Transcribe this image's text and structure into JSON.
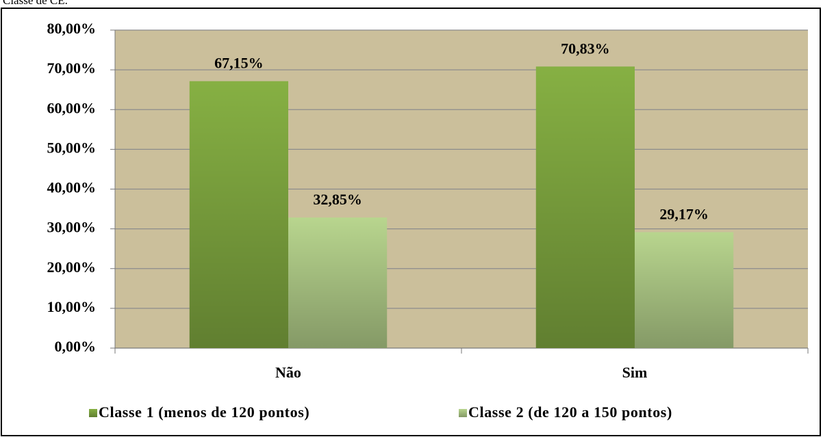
{
  "caption": "Classe de CE.",
  "chart_data": {
    "type": "bar",
    "categories": [
      "Não",
      "Sim"
    ],
    "series": [
      {
        "name": "Classe 1 (menos de 120 pontos)",
        "color": "#86b043",
        "values": [
          67.15,
          70.83
        ],
        "value_labels": [
          "67,15%",
          "70,83%"
        ]
      },
      {
        "name": "Classe 2 (de 120 a 150 pontos)",
        "color": "#b8d58e",
        "values": [
          32.85,
          29.17
        ],
        "value_labels": [
          "32,85%",
          "29,17%"
        ]
      }
    ],
    "ylim": [
      0,
      80
    ],
    "yticks": [
      {
        "value": 0,
        "label": "0,00%"
      },
      {
        "value": 10,
        "label": "10,00%"
      },
      {
        "value": 20,
        "label": "20,00%"
      },
      {
        "value": 30,
        "label": "30,00%"
      },
      {
        "value": 40,
        "label": "40,00%"
      },
      {
        "value": 50,
        "label": "50,00%"
      },
      {
        "value": 60,
        "label": "60,00%"
      },
      {
        "value": 70,
        "label": "70,00%"
      },
      {
        "value": 80,
        "label": "80,00%"
      }
    ],
    "grid": true,
    "legend": "bottom"
  }
}
